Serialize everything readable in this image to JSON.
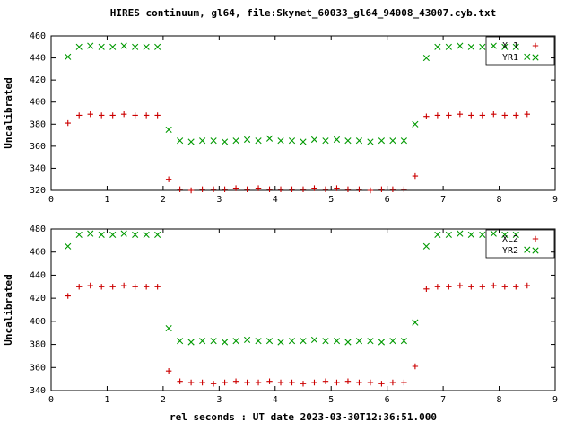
{
  "title": "HIRES continuum, gl64, file:Skynet_60033_gl64_94008_43007.cyb.txt",
  "colors": {
    "series_red": "#cc0000",
    "series_green": "#009900",
    "frame": "#000000",
    "background": "#ffffff"
  },
  "chart_data": [
    {
      "type": "scatter",
      "title": "HIRES continuum, gl64, file:Skynet_60033_gl64_94008_43007.cyb.txt",
      "ylabel": "Uncalibrated",
      "xlabel": "",
      "ylim": [
        320,
        460
      ],
      "ytick": 20,
      "xlim": [
        0,
        9
      ],
      "xtick": 1,
      "grid": false,
      "legend_position": "top-right",
      "x": [
        0.3,
        0.5,
        0.7,
        0.9,
        1.1,
        1.3,
        1.5,
        1.7,
        1.9,
        2.1,
        2.3,
        2.5,
        2.7,
        2.9,
        3.1,
        3.3,
        3.5,
        3.7,
        3.9,
        4.1,
        4.3,
        4.5,
        4.7,
        4.9,
        5.1,
        5.3,
        5.5,
        5.7,
        5.9,
        6.1,
        6.3,
        6.5,
        6.7,
        6.9,
        7.1,
        7.3,
        7.5,
        7.7,
        7.9,
        8.1,
        8.3,
        8.5
      ],
      "series": [
        {
          "name": "XL1",
          "marker": "plus",
          "color": "#cc0000",
          "y": [
            381,
            388,
            389,
            388,
            388,
            389,
            388,
            388,
            388,
            330,
            321,
            320,
            321,
            321,
            321,
            322,
            321,
            322,
            321,
            321,
            321,
            321,
            322,
            321,
            322,
            321,
            321,
            320,
            321,
            321,
            321,
            333,
            387,
            388,
            388,
            389,
            388,
            388,
            389,
            388,
            388,
            389
          ]
        },
        {
          "name": "YR1",
          "marker": "cross",
          "color": "#009900",
          "y": [
            441,
            450,
            451,
            450,
            450,
            451,
            450,
            450,
            450,
            375,
            365,
            364,
            365,
            365,
            364,
            365,
            366,
            365,
            367,
            365,
            365,
            364,
            366,
            365,
            366,
            365,
            365,
            364,
            365,
            365,
            365,
            380,
            440,
            450,
            450,
            451,
            450,
            450,
            451,
            450,
            450,
            441
          ]
        }
      ]
    },
    {
      "type": "scatter",
      "title": "",
      "ylabel": "Uncalibrated",
      "xlabel": "rel seconds : UT date 2023-03-30T12:36:51.000",
      "ylim": [
        340,
        480
      ],
      "ytick": 20,
      "xlim": [
        0,
        9
      ],
      "xtick": 1,
      "grid": false,
      "legend_position": "top-right",
      "x": [
        0.3,
        0.5,
        0.7,
        0.9,
        1.1,
        1.3,
        1.5,
        1.7,
        1.9,
        2.1,
        2.3,
        2.5,
        2.7,
        2.9,
        3.1,
        3.3,
        3.5,
        3.7,
        3.9,
        4.1,
        4.3,
        4.5,
        4.7,
        4.9,
        5.1,
        5.3,
        5.5,
        5.7,
        5.9,
        6.1,
        6.3,
        6.5,
        6.7,
        6.9,
        7.1,
        7.3,
        7.5,
        7.7,
        7.9,
        8.1,
        8.3,
        8.5
      ],
      "series": [
        {
          "name": "XL2",
          "marker": "plus",
          "color": "#cc0000",
          "y": [
            422,
            430,
            431,
            430,
            430,
            431,
            430,
            430,
            430,
            357,
            348,
            347,
            347,
            346,
            347,
            348,
            347,
            347,
            348,
            347,
            347,
            346,
            347,
            348,
            347,
            348,
            347,
            347,
            346,
            347,
            347,
            361,
            428,
            430,
            430,
            431,
            430,
            430,
            431,
            430,
            430,
            431
          ]
        },
        {
          "name": "YR2",
          "marker": "cross",
          "color": "#009900",
          "y": [
            465,
            475,
            476,
            475,
            475,
            476,
            475,
            475,
            475,
            394,
            383,
            382,
            383,
            383,
            382,
            383,
            384,
            383,
            383,
            382,
            383,
            383,
            384,
            383,
            383,
            382,
            383,
            383,
            382,
            383,
            383,
            399,
            465,
            475,
            475,
            476,
            475,
            475,
            476,
            475,
            475,
            462
          ]
        }
      ]
    }
  ]
}
